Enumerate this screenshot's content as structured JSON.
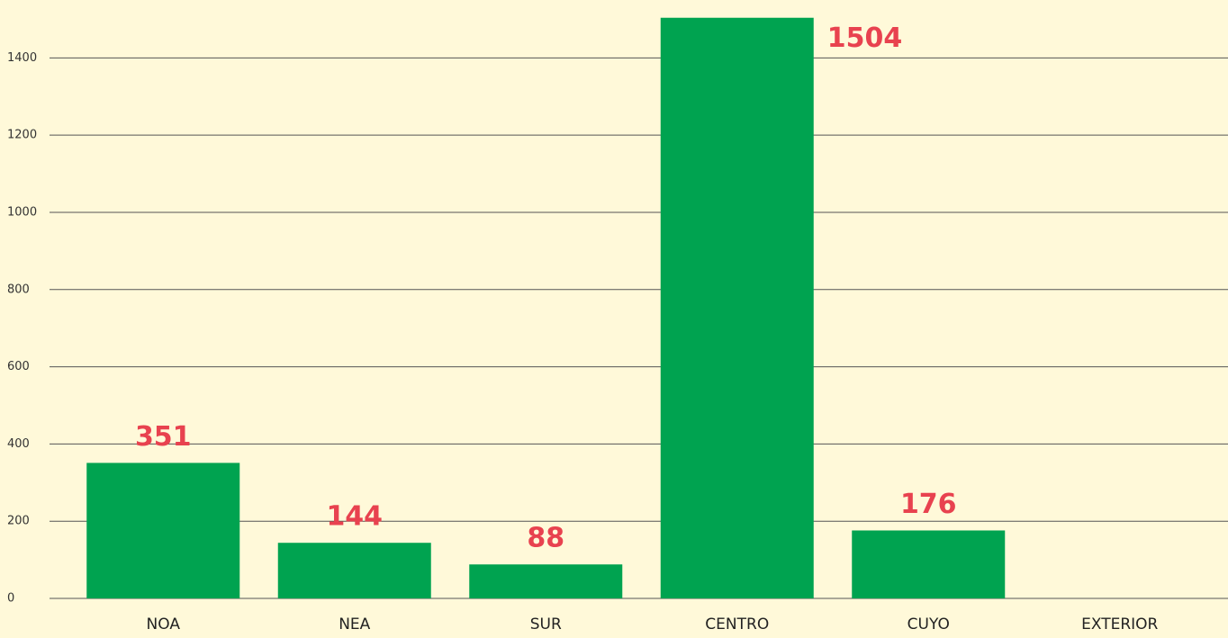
{
  "chart_data": {
    "type": "bar",
    "categories": [
      "NOA",
      "NEA",
      "SUR",
      "CENTRO",
      "CUYO",
      "EXTERIOR"
    ],
    "values": [
      351,
      144,
      88,
      1504,
      176,
      null
    ],
    "color": "#00a350",
    "label_color": "#e8424f",
    "ylim": [
      0,
      1550
    ],
    "yticks": [
      0,
      200,
      400,
      600,
      800,
      1000,
      1200,
      1400
    ],
    "grid": true
  }
}
